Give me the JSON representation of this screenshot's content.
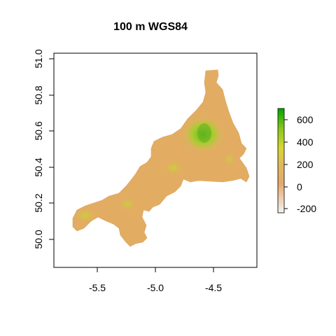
{
  "title": "100 m WGS84",
  "map": {
    "x_ticks": [
      "-5.5",
      "-5.0",
      "-4.5"
    ],
    "y_ticks": [
      "50.0",
      "50.2",
      "50.4",
      "50.6",
      "50.8",
      "51.0"
    ],
    "xlim": [
      -5.85,
      -4.2
    ],
    "ylim": [
      49.83,
      51.05
    ]
  },
  "legend": {
    "ticks": [
      "600",
      "400",
      "200",
      "0",
      "-200"
    ],
    "range": [
      -250,
      700
    ],
    "colors": {
      "low": "#f2f2f2",
      "mid": "#e6a96b",
      "yellow": "#d6d630",
      "high": "#00a600"
    }
  }
}
